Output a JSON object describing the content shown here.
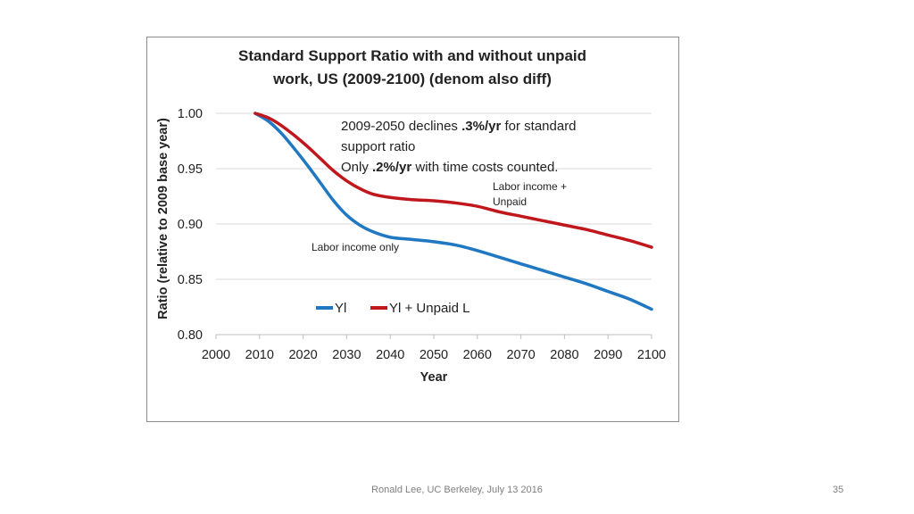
{
  "footer": "Ronald Lee, UC Berkeley, July 13 2016",
  "page_number": "35",
  "colors": {
    "yl": "#1f78c1",
    "yl_unpaid": "#c0171d",
    "grid": "#d9d9d9",
    "axis": "#bfbfbf"
  },
  "annotations": {
    "line1_a": "2009-2050 declines ",
    "line1_b": ".3%/yr",
    "line1_c": " for standard",
    "line2": "support ratio",
    "line3_a": "Only ",
    "line3_b": ".2%/yr",
    "line3_c": " with time costs counted.",
    "upper_label_1": "Labor income +",
    "upper_label_2": "Unpaid",
    "lower_label": "Labor income only"
  },
  "chart_data": {
    "type": "line",
    "title_line1": "Standard Support Ratio with and without unpaid",
    "title_line2": "work, US (2009-2100) (denom also diff)",
    "xlabel": "Year",
    "ylabel": "Ratio (relative to 2009 base year)",
    "xlim": [
      2000,
      2100
    ],
    "ylim": [
      0.8,
      1.0
    ],
    "x_ticks": [
      "2000",
      "2010",
      "2020",
      "2030",
      "2040",
      "2050",
      "2060",
      "2070",
      "2080",
      "2090",
      "2100"
    ],
    "y_ticks": [
      "0.80",
      "0.85",
      "0.90",
      "0.95",
      "1.00"
    ],
    "grid": "horizontal",
    "legend_position": "bottom-center",
    "series": [
      {
        "name": "Yl",
        "x": [
          2009,
          2012,
          2015,
          2018,
          2021,
          2024,
          2027,
          2030,
          2033,
          2036,
          2040,
          2045,
          2050,
          2055,
          2060,
          2065,
          2070,
          2075,
          2080,
          2085,
          2090,
          2095,
          2100
        ],
        "values": [
          1.0,
          0.993,
          0.982,
          0.968,
          0.953,
          0.937,
          0.921,
          0.908,
          0.899,
          0.893,
          0.888,
          0.886,
          0.884,
          0.881,
          0.876,
          0.87,
          0.864,
          0.858,
          0.852,
          0.846,
          0.839,
          0.832,
          0.823
        ]
      },
      {
        "name": "Yl + Unpaid L",
        "x": [
          2009,
          2012,
          2015,
          2018,
          2021,
          2024,
          2027,
          2030,
          2033,
          2036,
          2040,
          2045,
          2050,
          2055,
          2060,
          2065,
          2070,
          2075,
          2080,
          2085,
          2090,
          2095,
          2100
        ],
        "values": [
          1.0,
          0.996,
          0.989,
          0.98,
          0.97,
          0.959,
          0.948,
          0.939,
          0.932,
          0.927,
          0.924,
          0.922,
          0.921,
          0.919,
          0.916,
          0.911,
          0.907,
          0.903,
          0.899,
          0.895,
          0.89,
          0.885,
          0.879
        ]
      }
    ]
  }
}
